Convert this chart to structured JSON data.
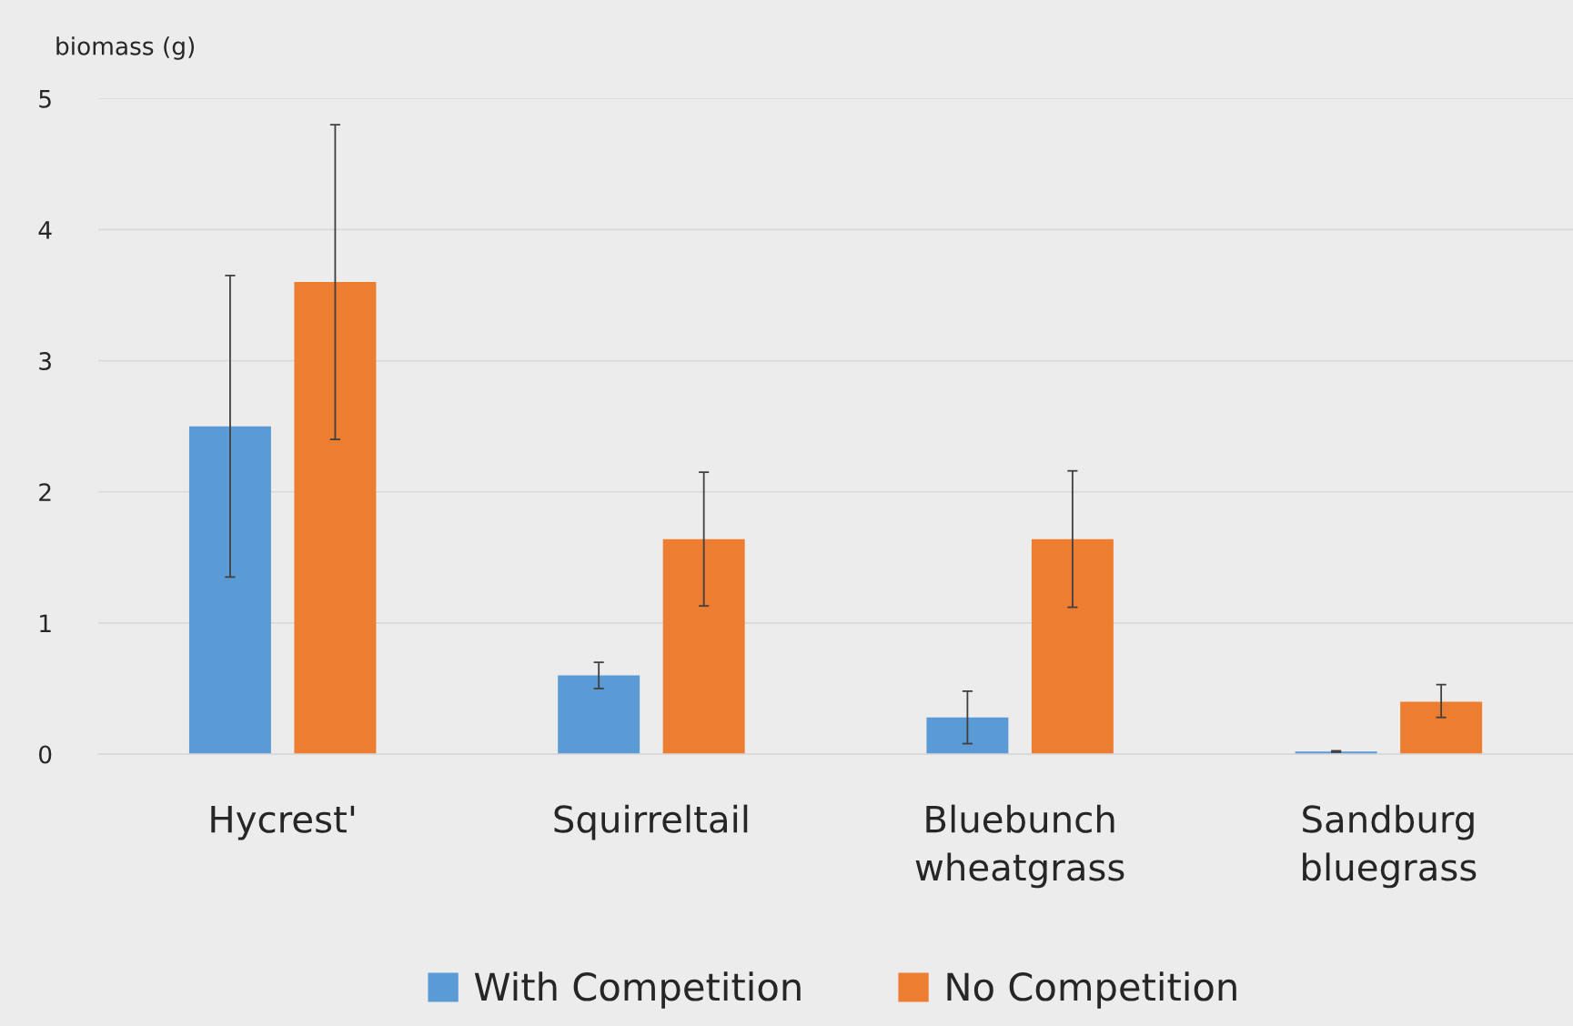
{
  "chart_data": {
    "type": "bar",
    "ylabel": "biomass (g)",
    "categories": [
      "Hycrest'",
      "Squirreltail",
      "Bluebunch wheatgrass",
      "Sandburg bluegrass"
    ],
    "series": [
      {
        "name": "With Competition",
        "color": "#5b9bd5",
        "values": [
          2.5,
          0.6,
          0.28,
          0.02
        ],
        "errors": [
          [
            1.35,
            3.65
          ],
          [
            0.5,
            0.7
          ],
          [
            0.08,
            0.48
          ],
          [
            0.015,
            0.025
          ]
        ]
      },
      {
        "name": "No Competition",
        "color": "#ed7d31",
        "values": [
          3.6,
          1.64,
          1.64,
          0.4
        ],
        "errors": [
          [
            2.4,
            4.8
          ],
          [
            1.13,
            2.15
          ],
          [
            1.12,
            2.16
          ],
          [
            0.28,
            0.53
          ]
        ]
      }
    ],
    "ylim": [
      0,
      5
    ],
    "yticks": [
      0,
      1,
      2,
      3,
      4,
      5
    ],
    "grid": "y",
    "legend": "bottom"
  }
}
